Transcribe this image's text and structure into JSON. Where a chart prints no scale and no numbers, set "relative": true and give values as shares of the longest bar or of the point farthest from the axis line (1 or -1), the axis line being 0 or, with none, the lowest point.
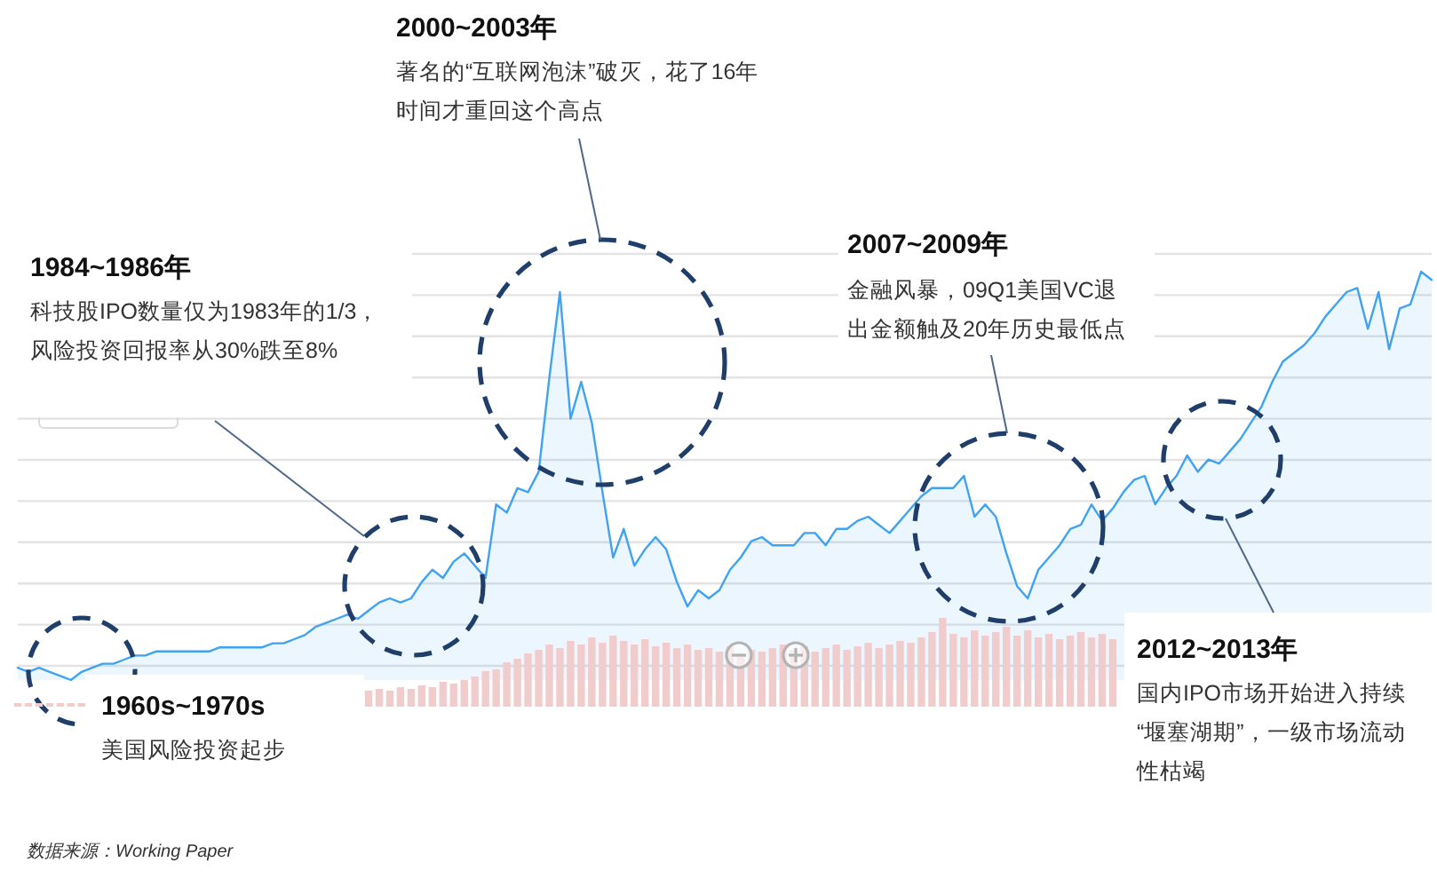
{
  "chart_data": [
    {
      "type": "area",
      "relative": true,
      "grid": true,
      "color": "#3fa2f2",
      "categories": [
        null,
        null,
        null,
        null,
        null,
        null,
        null,
        null,
        null,
        null,
        null,
        null,
        null,
        null,
        null,
        null,
        null,
        null,
        null,
        null,
        null,
        null,
        null,
        null,
        null,
        null,
        null,
        null,
        null,
        null,
        null,
        null,
        null,
        null,
        null,
        null,
        null,
        null,
        null,
        null,
        null,
        null,
        null,
        null,
        null,
        null,
        null,
        null,
        null,
        null,
        null,
        null,
        null,
        null,
        null,
        null,
        null,
        null,
        null,
        null,
        null,
        null,
        null,
        null,
        null,
        null,
        null,
        null,
        null,
        null,
        null,
        null,
        null,
        null,
        null,
        null,
        null,
        null,
        null,
        null,
        null,
        null,
        null,
        null,
        null,
        null,
        null,
        null,
        null,
        null,
        null,
        null,
        null,
        null,
        null,
        null,
        null,
        null,
        null,
        null,
        null,
        null,
        null,
        null,
        null,
        null,
        null,
        null,
        null,
        null,
        null,
        null,
        null,
        null,
        null,
        null,
        null,
        null,
        null,
        null,
        null,
        null,
        null,
        null,
        null,
        null,
        null,
        null,
        null,
        null,
        null,
        null,
        null,
        null
      ],
      "values": [
        0.03,
        0.02,
        0.03,
        0.02,
        0.01,
        0,
        0.02,
        0.03,
        0.04,
        0.04,
        0.05,
        0.06,
        0.06,
        0.07,
        0.07,
        0.07,
        0.07,
        0.07,
        0.07,
        0.08,
        0.08,
        0.08,
        0.08,
        0.08,
        0.09,
        0.09,
        0.1,
        0.11,
        0.13,
        0.14,
        0.15,
        0.16,
        0.15,
        0.17,
        0.19,
        0.2,
        0.19,
        0.2,
        0.24,
        0.27,
        0.25,
        0.29,
        0.31,
        0.28,
        0.25,
        0.43,
        0.41,
        0.47,
        0.46,
        0.51,
        0.74,
        0.95,
        0.64,
        0.73,
        0.63,
        0.46,
        0.3,
        0.37,
        0.28,
        0.32,
        0.35,
        0.32,
        0.24,
        0.18,
        0.22,
        0.2,
        0.22,
        0.27,
        0.3,
        0.34,
        0.35,
        0.33,
        0.33,
        0.33,
        0.36,
        0.36,
        0.33,
        0.37,
        0.37,
        0.39,
        0.4,
        0.38,
        0.36,
        0.39,
        0.42,
        0.45,
        0.47,
        0.47,
        0.47,
        0.5,
        0.4,
        0.43,
        0.4,
        0.31,
        0.23,
        0.2,
        0.27,
        0.3,
        0.33,
        0.37,
        0.38,
        0.43,
        0.39,
        0.42,
        0.46,
        0.49,
        0.5,
        0.43,
        0.47,
        0.5,
        0.55,
        0.51,
        0.54,
        0.53,
        0.56,
        0.59,
        0.63,
        0.67,
        0.73,
        0.78,
        0.8,
        0.82,
        0.85,
        0.89,
        0.92,
        0.95,
        0.96,
        0.86,
        0.95,
        0.81,
        0.91,
        0.92,
        1,
        0.98
      ],
      "annotations": [
        "2000~2003年",
        "著名的“互联网泡沫”破灭，花了16年时间才重回这个高点",
        "1984~1986年",
        "科技股IPO数量仅为1983年的1/3，风险投资回报率从30%跌至8%",
        "2007~2009年",
        "金融风暴，09Q1美国VC退出金额触及20年历史最低点",
        "2012~2013年",
        "国内IPO市场开始进入持续“堰塞湖期”，一级市场流动性枯竭",
        "1960s~1970s",
        "美国风险投资起步",
        "数据来源：Working Paper"
      ]
    },
    {
      "type": "bar",
      "relative": true,
      "color": "#f1cccc",
      "categories": [
        null,
        null,
        null,
        null,
        null,
        null,
        null,
        null,
        null,
        null,
        null,
        null,
        null,
        null,
        null,
        null,
        null,
        null,
        null,
        null,
        null,
        null,
        null,
        null,
        null,
        null,
        null,
        null,
        null,
        null,
        null,
        null,
        null,
        null,
        null,
        null,
        null,
        null,
        null,
        null,
        null,
        null,
        null,
        null,
        null,
        null,
        null,
        null,
        null,
        null,
        null,
        null,
        null,
        null,
        null,
        null,
        null,
        null,
        null,
        null,
        null,
        null,
        null,
        null,
        null,
        null,
        null,
        null,
        null,
        null,
        null,
        null,
        null,
        null,
        null,
        null,
        null,
        null,
        null,
        null,
        null,
        null,
        null,
        null,
        null,
        null,
        null,
        null,
        null,
        null,
        null,
        null,
        null,
        null,
        null,
        null,
        null,
        null,
        null,
        null,
        null,
        null,
        null,
        null,
        null,
        null,
        null,
        null,
        null,
        null,
        null,
        null,
        null,
        null,
        null,
        null,
        null,
        null,
        null,
        null,
        null,
        null,
        null,
        null,
        null,
        null,
        null,
        null,
        null,
        null,
        null,
        null,
        null,
        null
      ],
      "values": [
        0.04,
        0.04,
        0.04,
        0.04,
        0.04,
        0.04,
        0.04,
        null,
        null,
        null,
        null,
        null,
        null,
        null,
        null,
        null,
        null,
        null,
        null,
        null,
        null,
        null,
        null,
        null,
        null,
        null,
        null,
        null,
        null,
        null,
        null,
        null,
        null,
        0.18,
        0.2,
        0.18,
        0.22,
        0.2,
        0.24,
        0.22,
        0.28,
        0.26,
        0.3,
        0.34,
        0.4,
        0.42,
        0.5,
        0.54,
        0.6,
        0.64,
        0.7,
        0.66,
        0.74,
        0.7,
        0.78,
        0.72,
        0.8,
        0.74,
        0.7,
        0.76,
        0.68,
        0.72,
        0.66,
        0.7,
        0.64,
        0.66,
        0.62,
        0.68,
        0.6,
        0.64,
        0.62,
        0.66,
        0.7,
        0.64,
        0.68,
        0.62,
        0.66,
        0.7,
        0.64,
        0.68,
        0.72,
        0.66,
        0.7,
        0.74,
        0.72,
        0.78,
        0.84,
        1,
        0.82,
        0.78,
        0.86,
        0.8,
        0.84,
        0.9,
        0.8,
        0.86,
        0.78,
        0.82,
        0.76,
        0.8,
        0.84,
        0.78,
        0.82,
        0.76,
        null,
        null,
        null,
        null,
        null,
        null,
        null,
        null,
        null,
        null,
        null,
        null,
        null,
        null,
        null,
        null,
        null,
        null,
        null,
        null,
        null,
        null,
        null,
        null,
        null,
        null,
        null,
        null,
        null,
        null
      ]
    }
  ]
}
